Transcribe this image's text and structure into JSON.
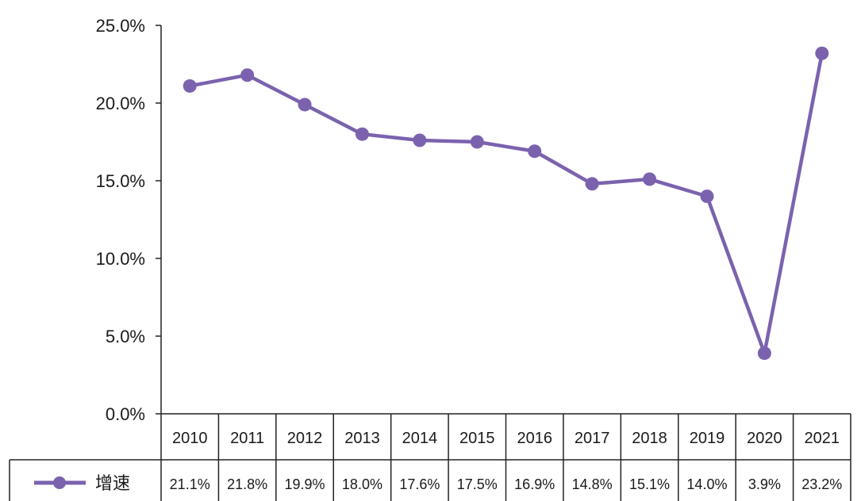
{
  "chart_data": {
    "type": "line",
    "title": "",
    "xlabel": "",
    "ylabel": "",
    "categories": [
      "2010",
      "2011",
      "2012",
      "2013",
      "2014",
      "2015",
      "2016",
      "2017",
      "2018",
      "2019",
      "2020",
      "2021"
    ],
    "series": [
      {
        "name": "增速",
        "values": [
          21.1,
          21.8,
          19.9,
          18.0,
          17.6,
          17.5,
          16.9,
          14.8,
          15.1,
          14.0,
          3.9,
          23.2
        ],
        "table_labels": [
          "21.1%",
          "21.8%",
          "19.9%",
          "18.0%",
          "17.6%",
          "17.5%",
          "16.9%",
          "14.8%",
          "15.1%",
          "14.0%",
          "3.9%",
          "23.2%"
        ],
        "color": "#7b62ae"
      }
    ],
    "ylim": [
      0,
      25
    ],
    "yticks": [
      "0.0%",
      "5.0%",
      "10.0%",
      "15.0%",
      "20.0%",
      "25.0%"
    ],
    "grid": false,
    "legend": "data-table-left"
  }
}
